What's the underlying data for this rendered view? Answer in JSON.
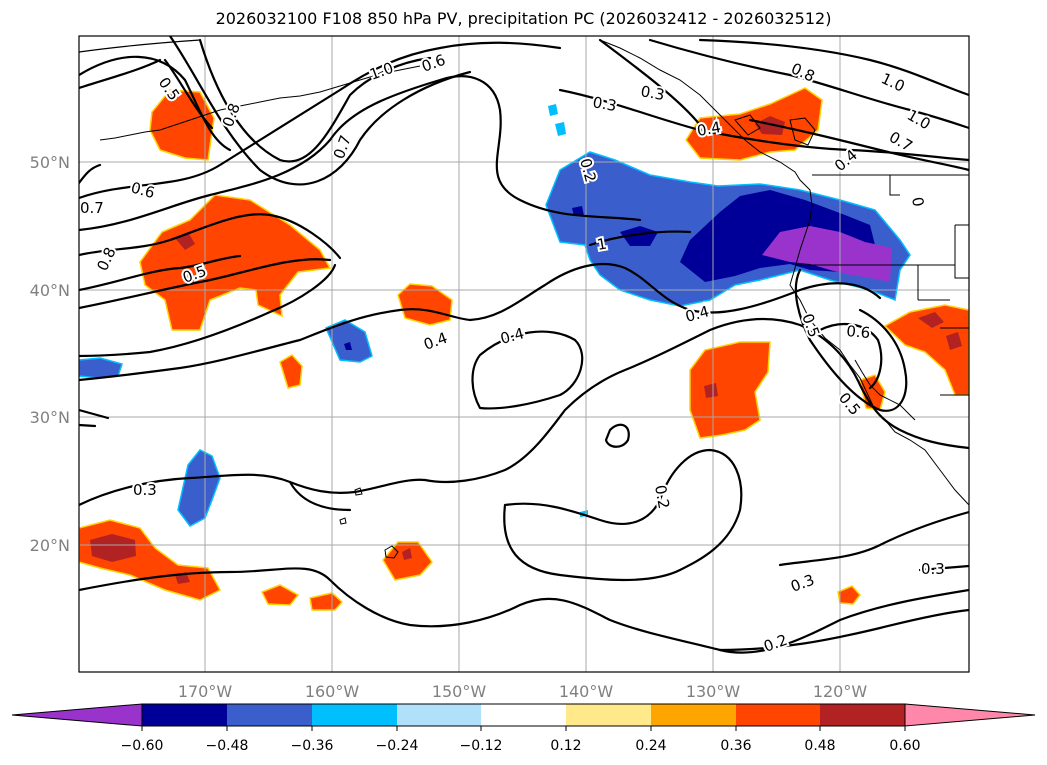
{
  "title": "2026032100 F108 850 hPa PV, precipitation PC (2026032412 - 2026032512)",
  "map": {
    "lon_labels": [
      "170°W",
      "160°W",
      "150°W",
      "140°W",
      "130°W",
      "120°W"
    ],
    "lat_labels": [
      "50°N",
      "40°N",
      "30°N",
      "20°N"
    ],
    "contour_labels": [
      "0.5",
      "0.8",
      "1.0",
      "0.6",
      "0.7",
      "0.3",
      "0.6",
      "0.5",
      "0.8",
      "0.7",
      "0.4",
      "0.4",
      "0.3",
      "0.4",
      "0.2",
      "0.3",
      "0.2",
      "0.3",
      "0.6",
      "0.5",
      "0.5",
      "0.8",
      "1.0",
      "1.0",
      "0.7",
      "0.4",
      "0.3",
      "0.4",
      "0.2",
      "1",
      "0"
    ]
  },
  "colorbar": {
    "ticks": [
      "−0.60",
      "−0.48",
      "−0.36",
      "−0.24",
      "−0.12",
      "0.12",
      "0.24",
      "0.36",
      "0.48",
      "0.60"
    ],
    "colors": [
      "#9933cc",
      "#000099",
      "#3a5fcd",
      "#00bfff",
      "#b0e0fa",
      "#ffffff",
      "#ffe98a",
      "#ffa500",
      "#ff4500",
      "#b22222",
      "#ff88aa"
    ]
  }
}
